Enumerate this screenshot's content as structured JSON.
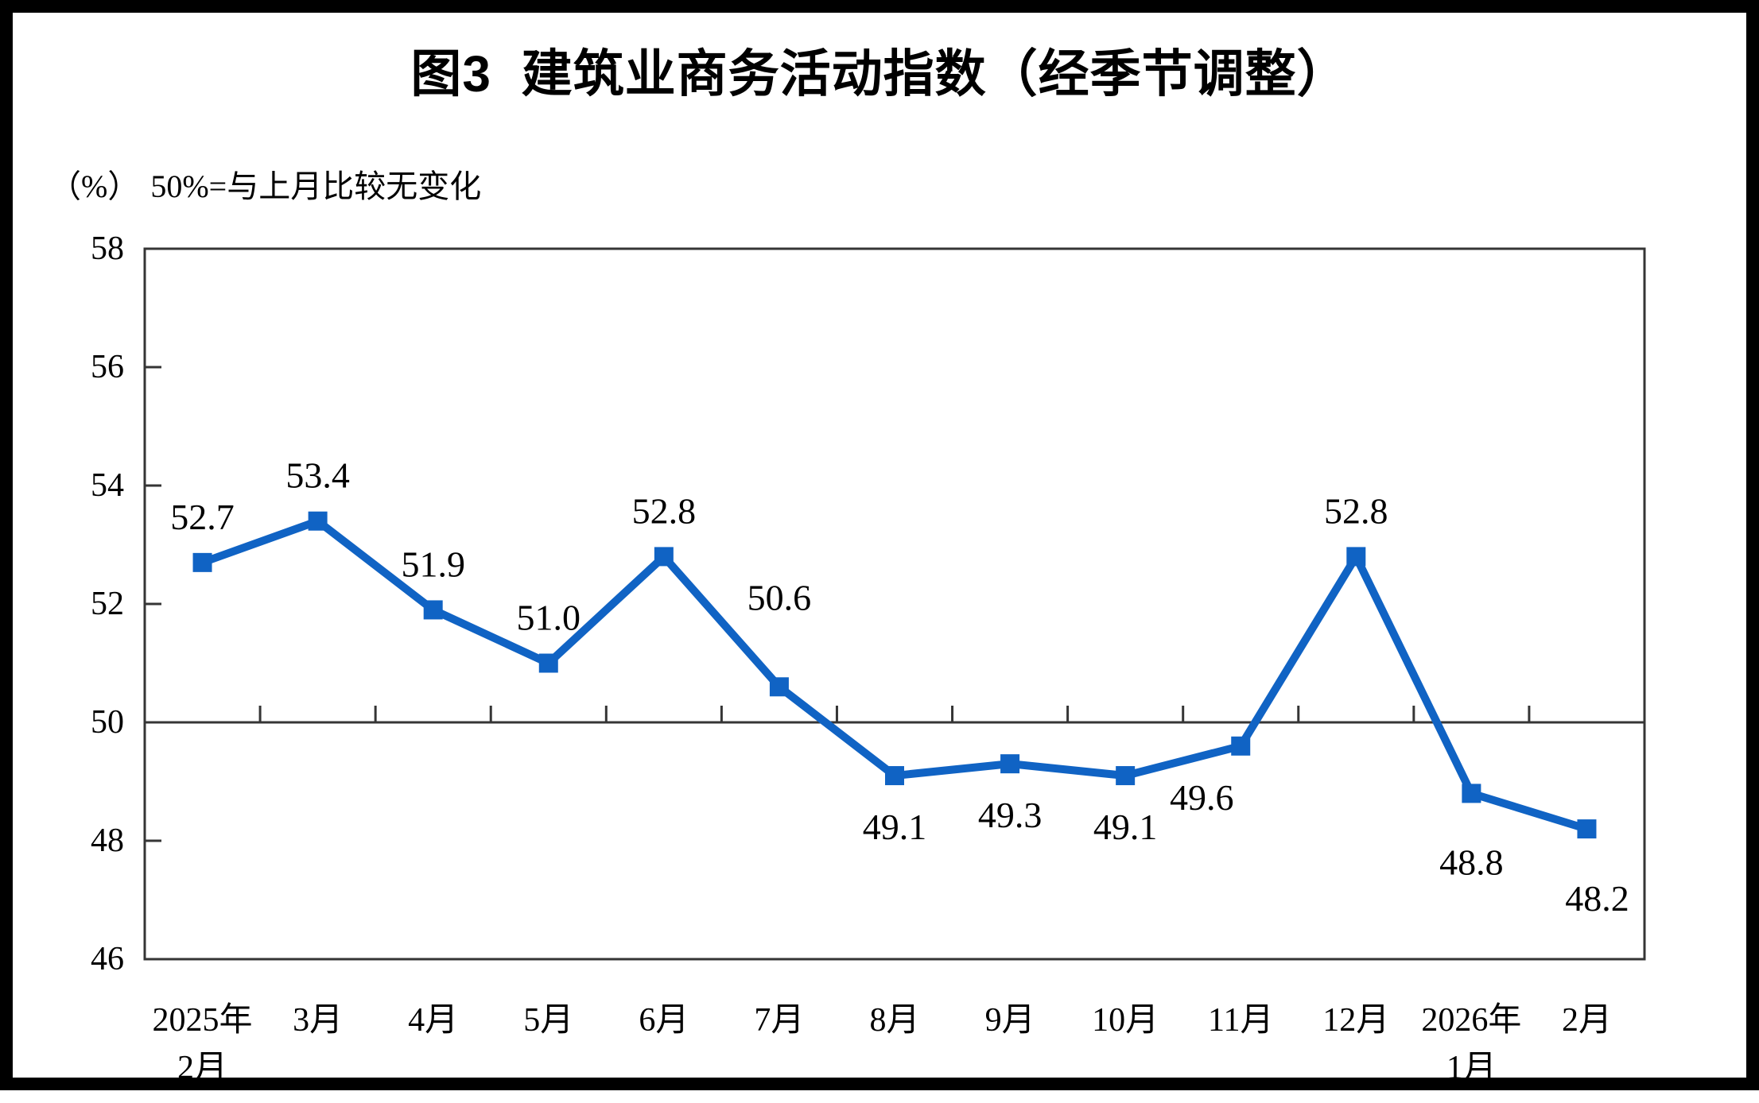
{
  "header": {
    "title": "图3  建筑业商务活动指数（经季节调整）"
  },
  "axis_note": {
    "unit": "（%）",
    "note": "50%=与上月比较无变化"
  },
  "chart_data": {
    "type": "line",
    "title": "图3 建筑业商务活动指数（经季节调整）",
    "subtitle": "（%）50%=与上月比较无变化",
    "categories": [
      "2025年\n2月",
      "3月",
      "4月",
      "5月",
      "6月",
      "7月",
      "8月",
      "9月",
      "10月",
      "11月",
      "12月",
      "2026年\n1月",
      "2月"
    ],
    "series": [
      {
        "name": "建筑业商务活动指数（经季节调整）",
        "values": [
          52.7,
          53.4,
          51.9,
          51.0,
          52.8,
          50.6,
          49.1,
          49.3,
          49.1,
          49.6,
          52.8,
          48.8,
          48.2
        ]
      }
    ],
    "data_labels": [
      "52.7",
      "53.4",
      "51.9",
      "51.0",
      "52.8",
      "50.6",
      "49.1",
      "49.3",
      "49.1",
      "49.6",
      "52.8",
      "48.8",
      "48.2"
    ],
    "label_positions": [
      "above",
      "above",
      "above",
      "above",
      "above",
      "above",
      "below",
      "below",
      "below",
      "below",
      "above",
      "below",
      "below"
    ],
    "label_dx": [
      0,
      0,
      0,
      0,
      0,
      0,
      0,
      0,
      0,
      -49,
      0,
      0,
      13
    ],
    "label_dy": [
      0,
      0,
      0,
      0,
      0,
      -55,
      0,
      0,
      0,
      0,
      0,
      22,
      23
    ],
    "ylim": [
      46,
      58
    ],
    "yticks": [
      46,
      48,
      50,
      52,
      54,
      56,
      58
    ],
    "reference_line": 50,
    "grid": false,
    "legend": "none",
    "marker": "square",
    "line_color": "#1063C4",
    "axis_color": "#353535",
    "text_color": "#000000"
  }
}
